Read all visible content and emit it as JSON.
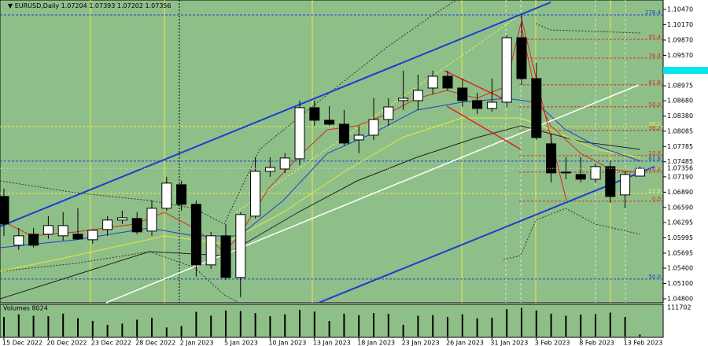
{
  "chart_data": [
    {
      "type": "candlestick",
      "title": "EURUSD,Daily",
      "categories": [
        "15 Dec 2022",
        null,
        null,
        "20 Dec 2022",
        null,
        null,
        "23 Dec 2022",
        null,
        null,
        "28 Dec 2022",
        null,
        null,
        "2 Jan 2023",
        null,
        null,
        "5 Jan 2023",
        null,
        null,
        "10 Jan 2023",
        null,
        null,
        "13 Jan 2023",
        null,
        null,
        "18 Jan 2023",
        null,
        null,
        "23 Jan 2023",
        null,
        null,
        "26 Jan 2023",
        null,
        null,
        "31 Jan 2023",
        null,
        null,
        "3 Feb 2023",
        null,
        null,
        "8 Feb 2023",
        null,
        null,
        "13 Feb 2023",
        null
      ],
      "open": [
        1.06805,
        1.0585,
        1.06066,
        1.06066,
        1.06035,
        1.06066,
        1.05958,
        1.06158,
        1.06343,
        1.06374,
        1.06127,
        1.06574,
        1.07036,
        1.06651,
        1.05465,
        1.06035,
        1.05219,
        1.0642,
        1.07298,
        1.07344,
        1.07544,
        1.08545,
        1.08299,
        1.08222,
        1.07914,
        1.08006,
        1.08314,
        1.08684,
        1.08684,
        1.0893,
        1.09161,
        1.0893,
        1.08684,
        1.0853,
        1.08653,
        1.09916,
        1.09115,
        1.07837,
        1.07267,
        1.07236,
        1.07144,
        1.0739,
        1.06836,
        1.07204
      ],
      "high": [
        1.06959,
        1.06189,
        1.06189,
        1.0642,
        1.06497,
        1.06574,
        1.06158,
        1.0642,
        1.06528,
        1.06497,
        1.06728,
        1.0719,
        1.07113,
        1.06728,
        1.06112,
        1.06266,
        1.06497,
        1.07575,
        1.07575,
        1.07652,
        1.08684,
        1.08684,
        1.08576,
        1.08499,
        1.08191,
        1.0873,
        1.0873,
        1.09269,
        1.09192,
        1.09269,
        1.09269,
        1.09115,
        1.08838,
        1.09115,
        1.09962,
        1.10378,
        1.09423,
        1.08037,
        1.07575,
        1.07575,
        1.07452,
        1.07498,
        1.07298,
        1.07393
      ],
      "low": [
        1.06035,
        1.05758,
        1.05804,
        1.05973,
        1.05942,
        1.05958,
        1.05881,
        1.06035,
        1.06266,
        1.06066,
        1.06035,
        1.06528,
        1.06528,
        1.05234,
        1.05388,
        1.05172,
        1.04834,
        1.06374,
        1.0719,
        1.07267,
        1.07421,
        1.08191,
        1.08191,
        1.07806,
        1.07652,
        1.07914,
        1.08191,
        1.08499,
        1.08499,
        1.08807,
        1.08884,
        1.0856,
        1.08422,
        1.08468,
        1.0856,
        1.08992,
        1.07914,
        1.07082,
        1.07144,
        1.07082,
        1.07082,
        1.06682,
        1.06574,
        1.07202
      ],
      "close": [
        1.06266,
        1.06035,
        1.0585,
        1.06235,
        1.06235,
        1.05973,
        1.06143,
        1.06343,
        1.06389,
        1.06112,
        1.06574,
        1.07067,
        1.06651,
        1.05465,
        1.06035,
        1.05219,
        1.06451,
        1.07298,
        1.07375,
        1.07559,
        1.08545,
        1.08299,
        1.08222,
        1.07852,
        1.08006,
        1.08314,
        1.0856,
        1.0873,
        1.08884,
        1.09161,
        1.0893,
        1.08684,
        1.0853,
        1.08653,
        1.09916,
        1.09115,
        1.0796,
        1.07267,
        1.07282,
        1.07144,
        1.0739,
        1.06805,
        1.07236,
        1.07356
      ],
      "ylim": [
        1.04723,
        1.10655
      ],
      "yticks": [
        {
          "value": 1.1047,
          "label": "1.10470"
        },
        {
          "value": 1.1017,
          "label": "1.10170"
        },
        {
          "value": 1.0987,
          "label": "1.09870"
        },
        {
          "value": 1.0957,
          "label": "1.09570"
        },
        1.08975,
        {
          "value": 1.0868,
          "label": "1.08680"
        },
        {
          "value": 1.0838,
          "label": "1.08380"
        },
        1.08085,
        1.07785,
        1.07485,
        {
          "value": 1.0719,
          "label": "1.07190"
        },
        {
          "value": 1.0689,
          "label": "1.06890"
        },
        {
          "value": 1.0659,
          "label": "1.06590"
        },
        1.06295,
        1.05995,
        1.05695,
        {
          "value": 1.054,
          "label": "1.05400"
        },
        {
          "value": 1.051,
          "label": "1.05100"
        },
        {
          "value": 1.048,
          "label": "1.04800"
        }
      ],
      "fib_levels": [
        {
          "label": "176.4",
          "value": 1.10362,
          "color": "#2040d0"
        },
        {
          "label": "85.4",
          "value": 1.09885,
          "color": "#d03020"
        },
        {
          "label": "76.4",
          "value": 1.09515,
          "color": "#d03020"
        },
        {
          "label": "61.8",
          "value": 1.08992,
          "color": "#d03020"
        },
        {
          "label": "50.0",
          "value": 1.08561,
          "color": "#d03020"
        },
        {
          "label": "38.2",
          "value": 1.08175,
          "color": "#e8e860"
        },
        {
          "label": "38.2",
          "value": 1.08099,
          "color": "#d03020"
        },
        {
          "label": "23.6",
          "value": 1.07606,
          "color": "#d03020"
        },
        {
          "label": "61.8",
          "value": 1.07498,
          "color": "#2040d0"
        },
        {
          "label": "14.6",
          "value": 1.07282,
          "color": "#d03020"
        },
        {
          "label": "23.6",
          "value": 1.06867,
          "color": "#e8e860"
        },
        {
          "label": "0.0",
          "value": 1.06713,
          "color": "#d03020"
        },
        {
          "label": "50.0",
          "value": 1.05188,
          "color": "#2040d0"
        }
      ]
    },
    {
      "type": "bar",
      "title": "Volumes 8024",
      "values": [
        75000,
        85000,
        80000,
        78000,
        88000,
        70000,
        60000,
        45000,
        50000,
        65000,
        72000,
        35000,
        40000,
        95000,
        80000,
        100000,
        98000,
        90000,
        78000,
        85000,
        102000,
        96000,
        60000,
        88000,
        82000,
        90000,
        87000,
        45000,
        80000,
        82000,
        75000,
        85000,
        70000,
        72000,
        105000,
        110000,
        100000,
        88000,
        80000,
        84000,
        86000,
        92000,
        75000,
        8024
      ],
      "ylim": [
        0,
        111702
      ],
      "yticks": [
        111702
      ],
      "color": "#000000"
    }
  ]
}
